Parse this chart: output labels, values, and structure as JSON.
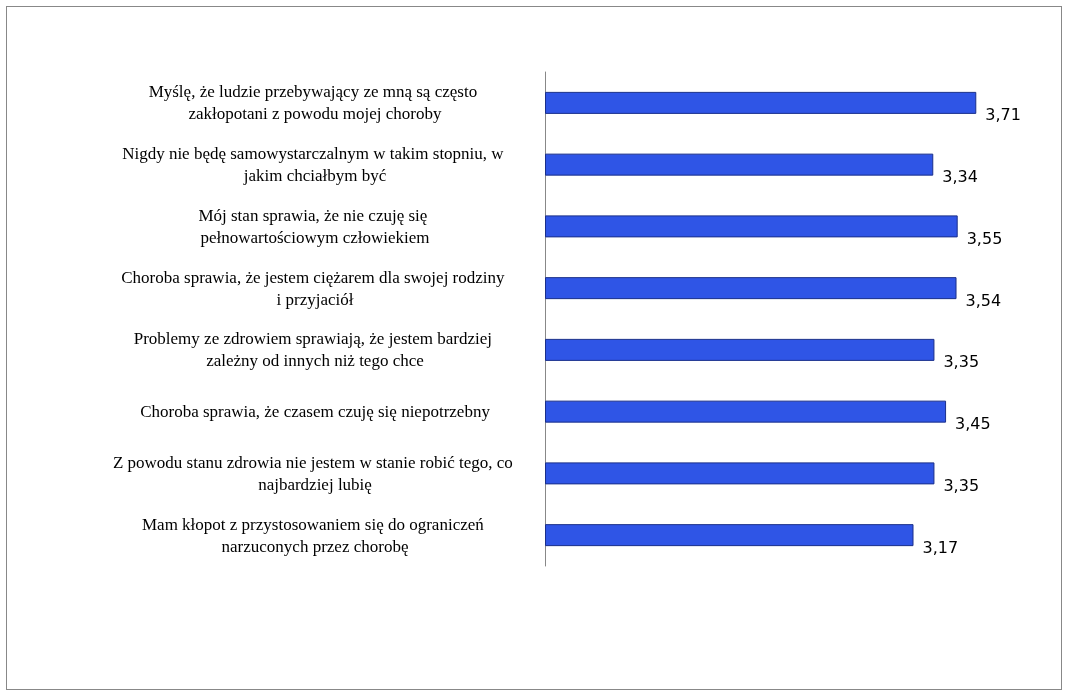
{
  "chart_data": {
    "type": "bar",
    "orientation": "horizontal",
    "categories": [
      "Myślę, że ludzie przebywający ze mną są często zakłopotani z powodu mojej choroby",
      "Nigdy nie będę samowystarczalnym w takim stopniu, w jakim chciałbym być",
      "Mój stan sprawia, że nie czuję się pełnowartościowym człowiekiem",
      "Choroba sprawia, że jestem ciężarem dla swojej rodziny i przyjaciół",
      "Problemy ze zdrowiem sprawiają, że jestem bardziej zależny od innych niż tego chce",
      "Choroba sprawia, że czasem czuję się niepotrzebny",
      "Z powodu stanu zdrowia nie jestem w stanie robić tego, co najbardziej lubię",
      "Mam kłopot z przystosowaniem się do ograniczeń narzuconych przez chorobę"
    ],
    "values": [
      3.71,
      3.34,
      3.55,
      3.54,
      3.35,
      3.45,
      3.35,
      3.17
    ],
    "value_labels": [
      "3,71",
      "3,34",
      "3,55",
      "3,54",
      "3,35",
      "3,45",
      "3,35",
      "3,17"
    ],
    "color": "#2f55e6",
    "tick_labels": "y"
  }
}
